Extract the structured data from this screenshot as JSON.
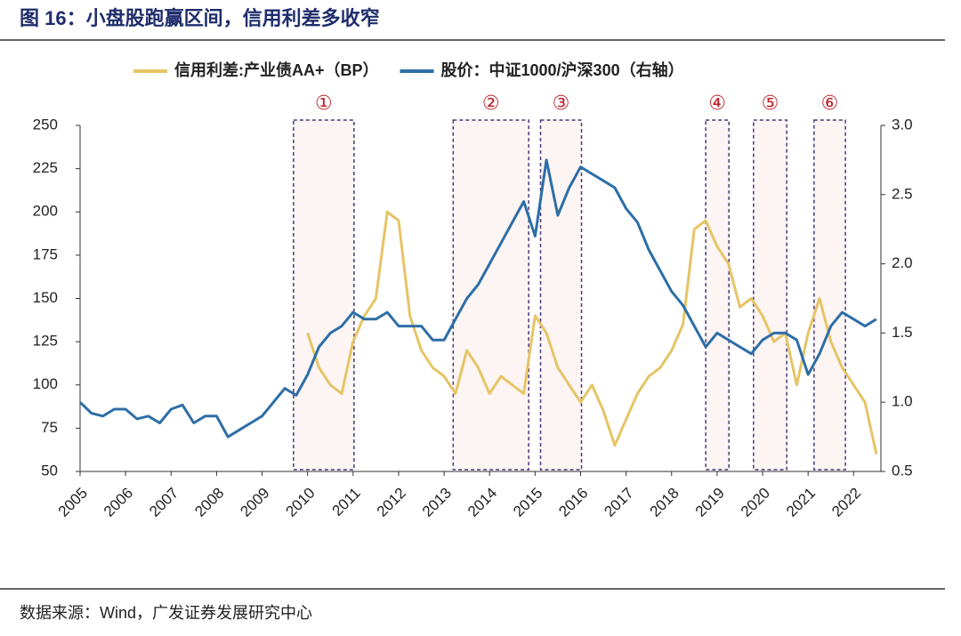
{
  "chart_data": {
    "type": "line",
    "title": "图 16：小盘股跑赢区间，信用利差多收窄",
    "source": "数据来源：Wind，广发证券发展研究中心",
    "x": [
      2005,
      2005.25,
      2005.5,
      2005.75,
      2006,
      2006.25,
      2006.5,
      2006.75,
      2007,
      2007.25,
      2007.5,
      2007.75,
      2008,
      2008.25,
      2008.5,
      2008.75,
      2009,
      2009.25,
      2009.5,
      2009.75,
      2010,
      2010.25,
      2010.5,
      2010.75,
      2011,
      2011.25,
      2011.5,
      2011.75,
      2012,
      2012.25,
      2012.5,
      2012.75,
      2013,
      2013.25,
      2013.5,
      2013.75,
      2014,
      2014.25,
      2014.5,
      2014.75,
      2015,
      2015.25,
      2015.5,
      2015.75,
      2016,
      2016.25,
      2016.5,
      2016.75,
      2017,
      2017.25,
      2017.5,
      2017.75,
      2018,
      2018.25,
      2018.5,
      2018.75,
      2019,
      2019.25,
      2019.5,
      2019.75,
      2020,
      2020.25,
      2020.5,
      2020.75,
      2021,
      2021.25,
      2021.5,
      2021.75,
      2022,
      2022.25,
      2022.5
    ],
    "series": [
      {
        "name": "信用利差:产业债AA+（BP）",
        "color": "#e6c466",
        "values": [
          null,
          null,
          null,
          null,
          null,
          null,
          null,
          null,
          null,
          null,
          null,
          null,
          null,
          null,
          null,
          null,
          null,
          null,
          null,
          null,
          130,
          110,
          100,
          95,
          125,
          140,
          150,
          200,
          195,
          140,
          120,
          110,
          105,
          95,
          120,
          110,
          95,
          105,
          100,
          95,
          140,
          130,
          110,
          100,
          90,
          100,
          85,
          65,
          80,
          95,
          105,
          110,
          120,
          135,
          190,
          195,
          180,
          170,
          145,
          150,
          140,
          125,
          130,
          100,
          130,
          150,
          125,
          110,
          100,
          90,
          60
        ]
      },
      {
        "name": "股价：中证1000/沪深300（右轴）",
        "color": "#2d6ea6",
        "axis": "y2",
        "values": [
          1.0,
          0.92,
          0.9,
          0.95,
          0.95,
          0.88,
          0.9,
          0.85,
          0.95,
          0.98,
          0.85,
          0.9,
          0.9,
          0.75,
          0.8,
          0.85,
          0.9,
          1.0,
          1.1,
          1.05,
          1.2,
          1.4,
          1.5,
          1.55,
          1.65,
          1.6,
          1.6,
          1.65,
          1.55,
          1.55,
          1.55,
          1.45,
          1.45,
          1.6,
          1.75,
          1.85,
          2.0,
          2.15,
          2.3,
          2.45,
          2.2,
          2.75,
          2.35,
          2.55,
          2.7,
          2.65,
          2.6,
          2.55,
          2.4,
          2.3,
          2.1,
          1.95,
          1.8,
          1.7,
          1.55,
          1.4,
          1.5,
          1.45,
          1.4,
          1.35,
          1.45,
          1.5,
          1.5,
          1.45,
          1.2,
          1.35,
          1.55,
          1.65,
          1.6,
          1.55,
          1.6
        ]
      }
    ],
    "regions": [
      {
        "label": "①",
        "x": [
          2009.69,
          2011.02
        ]
      },
      {
        "label": "②",
        "x": [
          2013.2,
          2014.86
        ]
      },
      {
        "label": "③",
        "x": [
          2015.12,
          2016.02
        ]
      },
      {
        "label": "④",
        "x": [
          2018.75,
          2019.26
        ]
      },
      {
        "label": "⑤",
        "x": [
          2019.8,
          2020.53
        ]
      },
      {
        "label": "⑥",
        "x": [
          2021.13,
          2021.82
        ]
      }
    ],
    "xlim": [
      2005,
      2022.6
    ],
    "xticks": [
      2005,
      2006,
      2007,
      2008,
      2009,
      2010,
      2011,
      2012,
      2013,
      2014,
      2015,
      2016,
      2017,
      2018,
      2019,
      2020,
      2021,
      2022
    ],
    "ylim": [
      50,
      250
    ],
    "yticks": [
      50,
      75,
      100,
      125,
      150,
      175,
      200,
      225,
      250
    ],
    "y2lim": [
      0.5,
      3.0
    ],
    "y2ticks": [
      {
        "value": 0.5,
        "label": "0.5"
      },
      {
        "value": 1,
        "label": "1.0"
      },
      {
        "value": 1.5,
        "label": "1.5"
      },
      {
        "value": 2,
        "label": "2.0"
      },
      {
        "value": 2.5,
        "label": "2.5"
      },
      {
        "value": 3,
        "label": "3.0"
      }
    ]
  }
}
